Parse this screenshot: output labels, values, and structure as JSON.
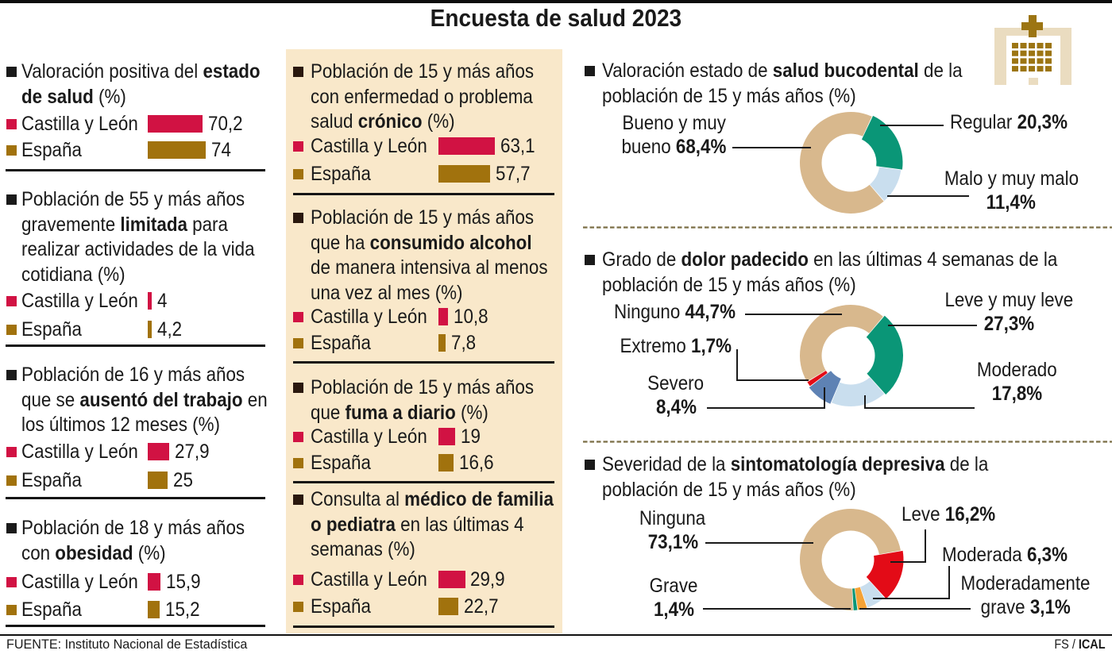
{
  "title": "Encuesta de salud 2023",
  "source_label": "FUENTE: Instituto Nacional de Estadística",
  "credit": {
    "prefix": "FS / ",
    "agency": "ICAL"
  },
  "icon": "hospital-icon",
  "colors": {
    "castilla_leon": "#d11243",
    "espana": "#a1720d",
    "panel_beige": "#f9e8ca",
    "donut_tan": "#d8b88d",
    "donut_green": "#0a9677",
    "donut_paleblue": "#c9deee",
    "donut_steelblue": "#5e82b4",
    "donut_red": "#e30b17",
    "donut_orange": "#f4a236",
    "text": "#1a1a1a",
    "dashed_rule": "#7a6e45"
  },
  "columns": {
    "left": {
      "blocks": [
        {
          "heading_lines": [
            [
              [
                "Valoración positiva del ",
                0
              ],
              [
                "estado",
                1
              ]
            ],
            [
              [
                "de salud",
                1
              ],
              [
                " (%)",
                0
              ]
            ]
          ],
          "rows": [
            {
              "label": "Castilla y León",
              "value": 70.2,
              "display": "70,2",
              "color": "castilla_leon"
            },
            {
              "label": "España",
              "value": 74,
              "display": "74",
              "color": "espana"
            }
          ]
        },
        {
          "heading_lines": [
            [
              [
                "Población de 55 y más años",
                0
              ]
            ],
            [
              [
                "gravemente ",
                0
              ],
              [
                "limitada",
                1
              ],
              [
                " para",
                0
              ]
            ],
            [
              [
                "realizar actividades de la vida",
                0
              ]
            ],
            [
              [
                "cotidiana (%)",
                0
              ]
            ]
          ],
          "rows": [
            {
              "label": "Castilla y León",
              "value": 4,
              "display": "4",
              "color": "castilla_leon"
            },
            {
              "label": "España",
              "value": 4.2,
              "display": "4,2",
              "color": "espana"
            }
          ]
        },
        {
          "heading_lines": [
            [
              [
                "Población de 16 y más años",
                0
              ]
            ],
            [
              [
                "que se ",
                0
              ],
              [
                "ausentó del trabajo",
                1
              ],
              [
                " en",
                0
              ]
            ],
            [
              [
                "los últimos 12 meses (%)",
                0
              ]
            ]
          ],
          "rows": [
            {
              "label": "Castilla y León",
              "value": 27.9,
              "display": "27,9",
              "color": "castilla_leon"
            },
            {
              "label": "España",
              "value": 25,
              "display": "25",
              "color": "espana"
            }
          ]
        },
        {
          "heading_lines": [
            [
              [
                "Población de 18 y más años",
                0
              ]
            ],
            [
              [
                "con ",
                0
              ],
              [
                "obesidad",
                1
              ],
              [
                " (%)",
                0
              ]
            ]
          ],
          "rows": [
            {
              "label": "Castilla y León",
              "value": 15.9,
              "display": "15,9",
              "color": "castilla_leon"
            },
            {
              "label": "España",
              "value": 15.2,
              "display": "15,2",
              "color": "espana"
            }
          ]
        }
      ]
    },
    "middle": {
      "blocks": [
        {
          "heading_lines": [
            [
              [
                "Población de 15 y más años",
                0
              ]
            ],
            [
              [
                "con enfermedad o problema",
                0
              ]
            ],
            [
              [
                "salud ",
                0
              ],
              [
                "crónico",
                1
              ],
              [
                " (%)",
                0
              ]
            ]
          ],
          "rows": [
            {
              "label": "Castilla y León",
              "value": 63.1,
              "display": "63,1",
              "color": "castilla_leon"
            },
            {
              "label": "España",
              "value": 57.7,
              "display": "57,7",
              "color": "espana"
            }
          ]
        },
        {
          "heading_lines": [
            [
              [
                "Población de 15 y más años",
                0
              ]
            ],
            [
              [
                "que ha ",
                0
              ],
              [
                "consumido alcohol",
                1
              ]
            ],
            [
              [
                "de manera intensiva al menos",
                0
              ]
            ],
            [
              [
                "una vez al mes (%)",
                0
              ]
            ]
          ],
          "rows": [
            {
              "label": "Castilla y León",
              "value": 10.8,
              "display": "10,8",
              "color": "castilla_leon"
            },
            {
              "label": "España",
              "value": 7.8,
              "display": "7,8",
              "color": "espana"
            }
          ]
        },
        {
          "heading_lines": [
            [
              [
                "Población de 15 y más años",
                0
              ]
            ],
            [
              [
                "que ",
                0
              ],
              [
                "fuma a diario",
                1
              ],
              [
                " (%)",
                0
              ]
            ]
          ],
          "rows": [
            {
              "label": "Castilla y León",
              "value": 19,
              "display": "19",
              "color": "castilla_leon"
            },
            {
              "label": "España",
              "value": 16.6,
              "display": "16,6",
              "color": "espana"
            }
          ]
        },
        {
          "heading_lines": [
            [
              [
                "Consulta al ",
                0
              ],
              [
                "médico de familia",
                1
              ]
            ],
            [
              [
                "o pediatra",
                1
              ],
              [
                " en las últimas 4",
                0
              ]
            ],
            [
              [
                "semanas (%)",
                0
              ]
            ]
          ],
          "rows": [
            {
              "label": "Castilla y León",
              "value": 29.9,
              "display": "29,9",
              "color": "castilla_leon"
            },
            {
              "label": "España",
              "value": 22.7,
              "display": "22,7",
              "color": "espana"
            }
          ]
        }
      ]
    }
  },
  "donut_sections": [
    {
      "heading_lines": [
        [
          [
            "Valoración estado de ",
            0
          ],
          [
            "salud bucodental",
            1
          ],
          [
            " de la",
            0
          ]
        ],
        [
          [
            "población de 15 y más años (%)",
            0
          ]
        ]
      ],
      "slices": [
        {
          "name": "Regular",
          "value": 20.3,
          "color": "donut_green"
        },
        {
          "name": "Malo y muy malo",
          "value": 11.4,
          "color": "donut_paleblue"
        },
        {
          "name": "Bueno y muy bueno",
          "value": 68.4,
          "color": "donut_tan"
        }
      ],
      "labels": [
        {
          "id": "bueno",
          "lines": [
            [
              [
                "Bueno y muy",
                0
              ]
            ],
            [
              [
                "bueno ",
                0
              ],
              [
                "68,4%",
                1
              ]
            ]
          ]
        },
        {
          "id": "regular",
          "lines": [
            [
              [
                "Regular ",
                0
              ],
              [
                "20,3%",
                1
              ]
            ]
          ]
        },
        {
          "id": "malo",
          "lines": [
            [
              [
                "Malo y muy malo",
                0
              ]
            ],
            [
              [
                "11,4%",
                1
              ]
            ]
          ]
        }
      ]
    },
    {
      "heading_lines": [
        [
          [
            "Grado de ",
            0
          ],
          [
            "dolor padecido",
            1
          ],
          [
            " en las últimas 4 semanas de la",
            0
          ]
        ],
        [
          [
            "población de 15 y más años (%)",
            0
          ]
        ]
      ],
      "slices": [
        {
          "name": "Leve y muy leve",
          "value": 27.3,
          "color": "donut_green"
        },
        {
          "name": "Moderado",
          "value": 17.8,
          "color": "donut_paleblue"
        },
        {
          "name": "Severo",
          "value": 8.4,
          "color": "donut_steelblue"
        },
        {
          "name": "Extremo",
          "value": 1.7,
          "color": "donut_red"
        },
        {
          "name": "Ninguno",
          "value": 44.7,
          "color": "donut_tan"
        }
      ],
      "labels": [
        {
          "id": "ninguno",
          "lines": [
            [
              [
                "Ninguno ",
                0
              ],
              [
                "44,7%",
                1
              ]
            ]
          ]
        },
        {
          "id": "extremo",
          "lines": [
            [
              [
                "Extremo ",
                0
              ],
              [
                "1,7%",
                1
              ]
            ]
          ]
        },
        {
          "id": "severo",
          "lines": [
            [
              [
                "Severo",
                0
              ]
            ],
            [
              [
                "8,4%",
                1
              ]
            ]
          ]
        },
        {
          "id": "leve",
          "lines": [
            [
              [
                "Leve y muy leve",
                0
              ]
            ],
            [
              [
                "27,3%",
                1
              ]
            ]
          ]
        },
        {
          "id": "moderado",
          "lines": [
            [
              [
                "Moderado",
                0
              ]
            ],
            [
              [
                "17,8%",
                1
              ]
            ]
          ]
        }
      ]
    },
    {
      "heading_lines": [
        [
          [
            "Severidad de la ",
            0
          ],
          [
            "sintomatología depresiva",
            1
          ],
          [
            " de la",
            0
          ]
        ],
        [
          [
            "población de 15 y más años (%)",
            0
          ]
        ]
      ],
      "slices": [
        {
          "name": "Leve",
          "value": 16.2,
          "color": "donut_red"
        },
        {
          "name": "Moderada",
          "value": 6.3,
          "color": "donut_paleblue"
        },
        {
          "name": "Moderadamente grave",
          "value": 3.1,
          "color": "donut_orange"
        },
        {
          "name": "Grave",
          "value": 1.4,
          "color": "donut_green"
        },
        {
          "name": "Ninguna",
          "value": 73.1,
          "color": "donut_tan"
        }
      ],
      "labels": [
        {
          "id": "ninguna",
          "lines": [
            [
              [
                "Ninguna",
                0
              ]
            ],
            [
              [
                "73,1%",
                1
              ]
            ]
          ]
        },
        {
          "id": "grave",
          "lines": [
            [
              [
                "Grave",
                0
              ]
            ],
            [
              [
                "1,4%",
                1
              ]
            ]
          ]
        },
        {
          "id": "leve3",
          "lines": [
            [
              [
                "Leve ",
                0
              ],
              [
                "16,2%",
                1
              ]
            ]
          ]
        },
        {
          "id": "moderada3",
          "lines": [
            [
              [
                "Moderada ",
                0
              ],
              [
                "6,3%",
                1
              ]
            ]
          ]
        },
        {
          "id": "modgrave3",
          "lines": [
            [
              [
                "Moderadamente",
                0
              ]
            ],
            [
              [
                "grave ",
                0
              ],
              [
                "3,1%",
                1
              ]
            ]
          ]
        }
      ]
    }
  ],
  "chart_data": [
    {
      "type": "bar",
      "title": "Valoración positiva del estado de salud (%)",
      "categories": [
        "Castilla y León",
        "España"
      ],
      "values": [
        70.2,
        74
      ]
    },
    {
      "type": "bar",
      "title": "Población de 55 y más años gravemente limitada para realizar actividades de la vida cotidiana (%)",
      "categories": [
        "Castilla y León",
        "España"
      ],
      "values": [
        4,
        4.2
      ]
    },
    {
      "type": "bar",
      "title": "Población de 16 y más años que se ausentó del trabajo en los últimos 12 meses (%)",
      "categories": [
        "Castilla y León",
        "España"
      ],
      "values": [
        27.9,
        25
      ]
    },
    {
      "type": "bar",
      "title": "Población de 18 y más años con obesidad (%)",
      "categories": [
        "Castilla y León",
        "España"
      ],
      "values": [
        15.9,
        15.2
      ]
    },
    {
      "type": "bar",
      "title": "Población de 15 y más años con enfermedad o problema salud crónico (%)",
      "categories": [
        "Castilla y León",
        "España"
      ],
      "values": [
        63.1,
        57.7
      ]
    },
    {
      "type": "bar",
      "title": "Población de 15 y más años que ha consumido alcohol de manera intensiva al menos una vez al mes (%)",
      "categories": [
        "Castilla y León",
        "España"
      ],
      "values": [
        10.8,
        7.8
      ]
    },
    {
      "type": "bar",
      "title": "Población de 15 y más años que fuma a diario (%)",
      "categories": [
        "Castilla y León",
        "España"
      ],
      "values": [
        19,
        16.6
      ]
    },
    {
      "type": "bar",
      "title": "Consulta al médico de familia o pediatra en las últimas 4 semanas (%)",
      "categories": [
        "Castilla y León",
        "España"
      ],
      "values": [
        29.9,
        22.7
      ]
    },
    {
      "type": "pie",
      "title": "Valoración estado de salud bucodental de la población de 15 y más años (%)",
      "categories": [
        "Bueno y muy bueno",
        "Regular",
        "Malo y muy malo"
      ],
      "values": [
        68.4,
        20.3,
        11.4
      ]
    },
    {
      "type": "pie",
      "title": "Grado de dolor padecido en las últimas 4 semanas de la población de 15 y más años (%)",
      "categories": [
        "Ninguno",
        "Leve y muy leve",
        "Moderado",
        "Severo",
        "Extremo"
      ],
      "values": [
        44.7,
        27.3,
        17.8,
        8.4,
        1.7
      ]
    },
    {
      "type": "pie",
      "title": "Severidad de la sintomatología depresiva de la población de 15 y más años (%)",
      "categories": [
        "Ninguna",
        "Leve",
        "Moderada",
        "Moderadamente grave",
        "Grave"
      ],
      "values": [
        73.1,
        16.2,
        6.3,
        3.1,
        1.4
      ]
    }
  ]
}
